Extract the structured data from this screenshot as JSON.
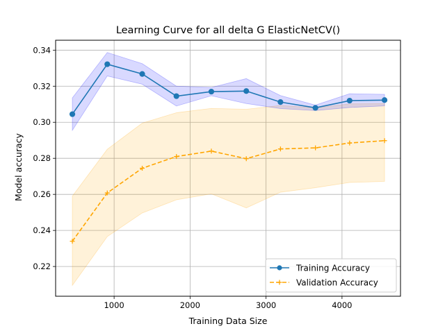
{
  "chart_data": {
    "type": "line",
    "title": "Learning Curve for all delta G ElasticNetCV()",
    "xlabel": "Training Data Size",
    "ylabel": "Model accuracy",
    "xlim": [
      230,
      4770
    ],
    "ylim": [
      0.2035,
      0.3455
    ],
    "xticks": [
      1000,
      2000,
      3000,
      4000
    ],
    "xtick_labels": [
      "1000",
      "2000",
      "3000",
      "4000"
    ],
    "yticks": [
      0.22,
      0.24,
      0.26,
      0.28,
      0.3,
      0.32,
      0.34
    ],
    "ytick_labels": [
      "0.22",
      "0.24",
      "0.26",
      "0.28",
      "0.30",
      "0.32",
      "0.34"
    ],
    "grid": true,
    "legend_position": "lower-right",
    "x": [
      450,
      910,
      1370,
      1820,
      2280,
      2740,
      3190,
      3650,
      4100,
      4560
    ],
    "series": [
      {
        "name": "Training Accuracy",
        "color": "#1f77b4",
        "band_color": "#0000ff",
        "line_style": "solid",
        "marker": "circle",
        "values": [
          0.3045,
          0.3322,
          0.3268,
          0.3145,
          0.317,
          0.3173,
          0.3112,
          0.308,
          0.312,
          0.3123
        ],
        "upper": [
          0.3135,
          0.3387,
          0.3325,
          0.32,
          0.3193,
          0.3242,
          0.3148,
          0.3095,
          0.3158,
          0.3155
        ],
        "lower": [
          0.2955,
          0.3257,
          0.3211,
          0.309,
          0.3147,
          0.3104,
          0.3076,
          0.3065,
          0.3082,
          0.3091
        ]
      },
      {
        "name": "Validation Accuracy",
        "color": "#ffa500",
        "band_color": "#ffa500",
        "line_style": "dashed",
        "marker": "plus",
        "values": [
          0.234,
          0.2608,
          0.2745,
          0.281,
          0.284,
          0.2798,
          0.2852,
          0.2858,
          0.2885,
          0.2898
        ],
        "upper": [
          0.259,
          0.285,
          0.2995,
          0.3053,
          0.3077,
          0.3072,
          0.3093,
          0.308,
          0.3102,
          0.3103
        ],
        "lower": [
          0.2095,
          0.2366,
          0.2497,
          0.257,
          0.2603,
          0.2525,
          0.2612,
          0.2637,
          0.2666,
          0.2672
        ]
      }
    ]
  }
}
